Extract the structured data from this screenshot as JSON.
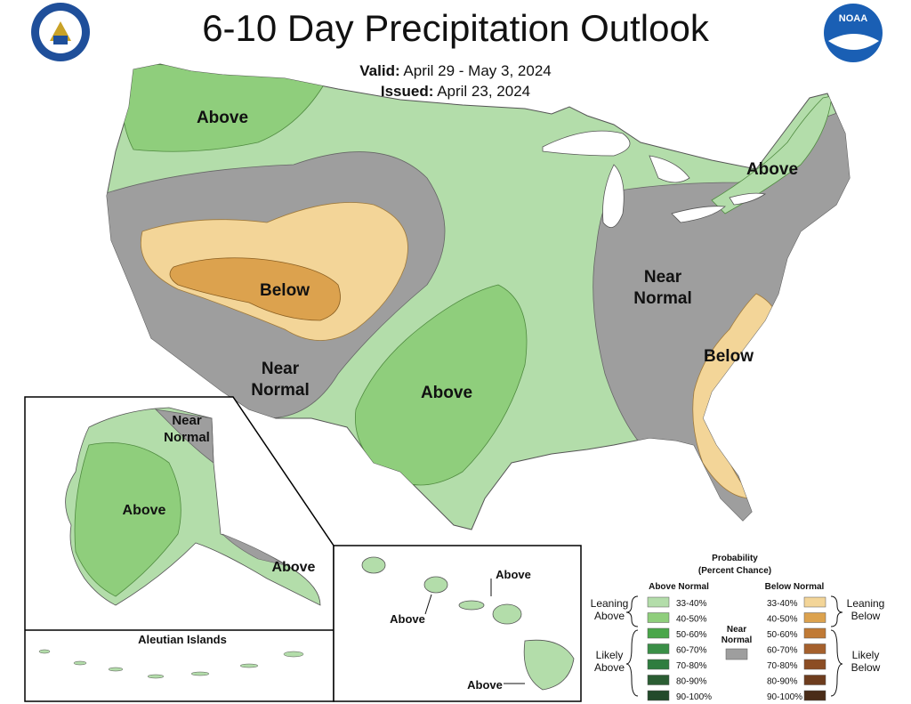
{
  "header": {
    "title": "6-10 Day Precipitation Outlook",
    "valid_label": "Valid:",
    "valid_value": "April 29 - May 3, 2024",
    "issued_label": "Issued:",
    "issued_value": "April 23, 2024"
  },
  "logos": {
    "commerce_seal": "UNITED STATES OF AMERICA DEPARTMENT OF COMMERCE",
    "noaa": "NOAA"
  },
  "colors": {
    "leaning_above": "#b3ddaa",
    "above_40_50": "#8fce7c",
    "near_normal": "#9e9e9e",
    "leaning_below": "#f3d598",
    "below_40_50": "#dca24e",
    "water": "#ffffff"
  },
  "map_labels": {
    "nw_above": "Above",
    "ne_above": "Above",
    "west_below": "Below",
    "west_near_normal_1": "Near",
    "west_near_normal_2": "Normal",
    "east_near_normal_1": "Near",
    "east_near_normal_2": "Normal",
    "southern_plains_above": "Above",
    "se_below": "Below"
  },
  "alaska": {
    "near_normal_1": "Near",
    "near_normal_2": "Normal",
    "above_west": "Above",
    "above_se": "Above",
    "aleutian_title": "Aleutian Islands"
  },
  "hawaii": {
    "above_1": "Above",
    "above_2": "Above",
    "above_3": "Above"
  },
  "legend": {
    "title_1": "Probability",
    "title_2": "(Percent Chance)",
    "above_header": "Above Normal",
    "below_header": "Below Normal",
    "near_1": "Near",
    "near_2": "Normal",
    "leaning_above_1": "Leaning",
    "leaning_above_2": "Above",
    "likely_above_1": "Likely",
    "likely_above_2": "Above",
    "leaning_below_1": "Leaning",
    "leaning_below_2": "Below",
    "likely_below_1": "Likely",
    "likely_below_2": "Below",
    "above_bins": [
      "33-40%",
      "40-50%",
      "50-60%",
      "60-70%",
      "70-80%",
      "80-90%",
      "90-100%"
    ],
    "above_colors": [
      "#b3ddaa",
      "#8fce7c",
      "#4aa64a",
      "#3a8f47",
      "#2f7d3f",
      "#2b5d33",
      "#234a2b"
    ],
    "below_bins": [
      "33-40%",
      "40-50%",
      "50-60%",
      "60-70%",
      "70-80%",
      "80-90%",
      "90-100%"
    ],
    "below_colors": [
      "#f3d598",
      "#dca24e",
      "#c07a35",
      "#a5602c",
      "#8c4d24",
      "#6e3d1e",
      "#4a2c18"
    ]
  }
}
